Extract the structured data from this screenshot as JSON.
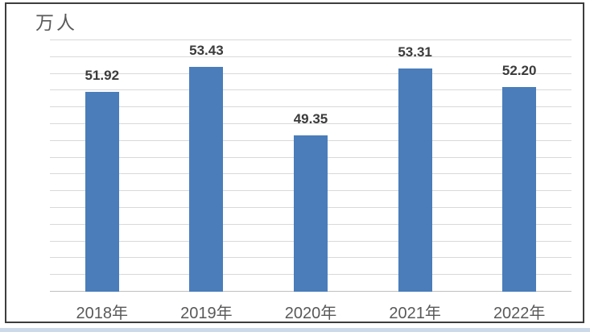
{
  "chart_data": {
    "type": "bar",
    "title": "",
    "unit_label": "万人",
    "categories": [
      "2018年",
      "2019年",
      "2020年",
      "2021年",
      "2022年"
    ],
    "values": [
      51.92,
      53.43,
      49.35,
      53.31,
      52.2
    ],
    "value_labels": [
      "51.92",
      "53.43",
      "49.35",
      "53.31",
      "52.20"
    ],
    "ylabel": "",
    "xlabel": "",
    "ylim": [
      40,
      55
    ],
    "grid_interval": 1,
    "grid_visible": true,
    "y_tick_labels_visible": false,
    "legend_position": "none",
    "colors": {
      "bar": "#4A7DBA",
      "gridline": "#D9D9D9",
      "axis_line": "#BFBFBF",
      "value_label": "#3B3B3B",
      "category_label": "#595959",
      "unit_label": "#595959",
      "frame_border": "#3D3D3D",
      "bottom_strip": "#CBD9E9",
      "background": "#FFFFFF"
    }
  }
}
